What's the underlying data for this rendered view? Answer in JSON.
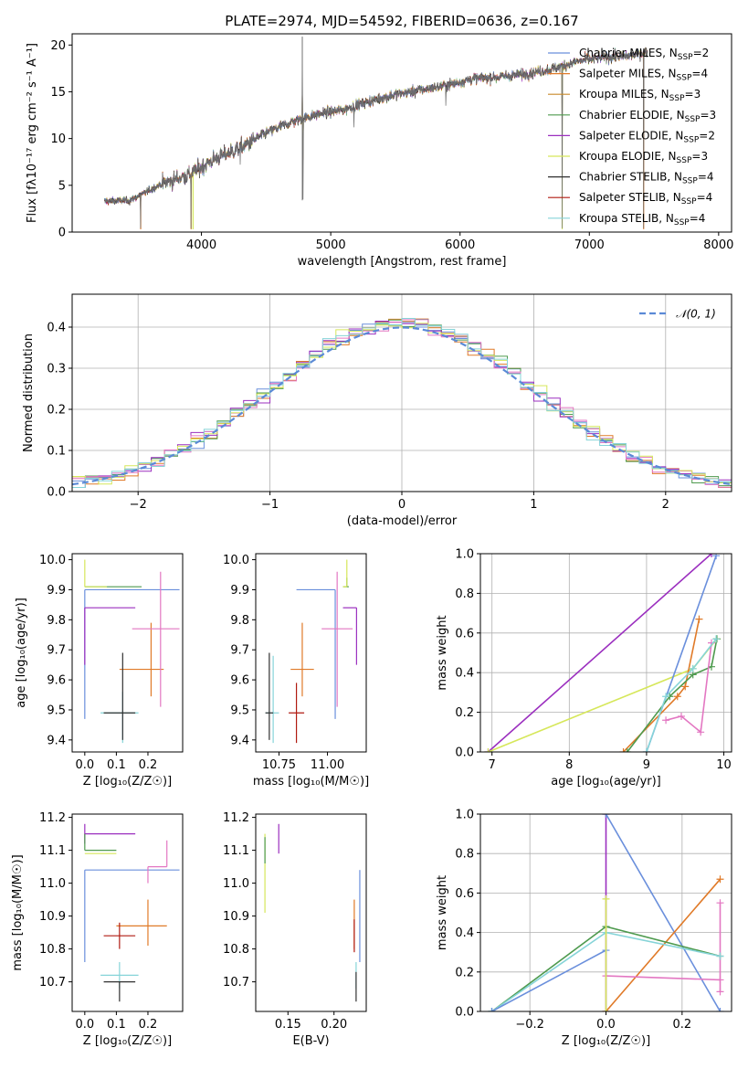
{
  "colors": {
    "chab_miles": "#6a8fdc",
    "salp_miles": "#e07a28",
    "krou_miles": "#c98a2a",
    "chab_elodie": "#4e9a4e",
    "salp_elodie": "#9b2fbf",
    "krou_elodie": "#d6e75a",
    "chab_stelib": "#303030",
    "salp_stelib": "#b01a10",
    "krou_stelib": "#86d4d8",
    "pink": "#e377c2",
    "spectrum_grey": "#6f6f6f",
    "gauss": "#5b8ad6"
  },
  "chart_data": [
    {
      "id": "spectrum",
      "type": "line",
      "title": "PLATE=2974, MJD=54592, FIBERID=0636, z=0.167",
      "xlabel": "wavelength [Angstrom, rest frame]",
      "ylabel": "Flux [fλ10⁻¹⁷ erg cm⁻² s⁻¹ A⁻¹]",
      "xlim": [
        3000,
        8100
      ],
      "ylim": [
        0,
        21.2
      ],
      "xticks": [
        4000,
        5000,
        6000,
        7000,
        8000
      ],
      "yticks": [
        0,
        5,
        10,
        15,
        20
      ],
      "x_range": [
        3250,
        7450
      ],
      "trend_knots": [
        [
          3250,
          3.3
        ],
        [
          3450,
          3.4
        ],
        [
          3700,
          5.2
        ],
        [
          3900,
          6.1
        ],
        [
          4100,
          7.8
        ],
        [
          4300,
          9.0
        ],
        [
          4500,
          10.6
        ],
        [
          4700,
          11.8
        ],
        [
          4900,
          12.6
        ],
        [
          5100,
          13.1
        ],
        [
          5300,
          14.0
        ],
        [
          5500,
          14.7
        ],
        [
          5700,
          15.2
        ],
        [
          5900,
          15.7
        ],
        [
          6100,
          16.4
        ],
        [
          6300,
          16.6
        ],
        [
          6500,
          16.9
        ],
        [
          6700,
          17.4
        ],
        [
          6900,
          18.2
        ],
        [
          7100,
          18.7
        ],
        [
          7300,
          18.8
        ],
        [
          7450,
          19.3
        ]
      ],
      "features": [
        [
          4780,
          20.9
        ],
        [
          4785,
          3.5
        ],
        [
          5890,
          13.5
        ],
        [
          3530,
          0.4
        ],
        [
          3920,
          0.4
        ],
        [
          6790,
          0.4
        ],
        [
          7420,
          0.4
        ],
        [
          5180,
          11.2
        ],
        [
          4300,
          7.2
        ]
      ],
      "legend_position": "upper right",
      "legend": [
        {
          "label": "Chabrier MILES, N",
          "sub": "SSP",
          "suffix": "=2",
          "color_key": "chab_miles"
        },
        {
          "label": "Salpeter MILES, N",
          "sub": "SSP",
          "suffix": "=4",
          "color_key": "salp_miles"
        },
        {
          "label": "Kroupa MILES, N",
          "sub": "SSP",
          "suffix": "=3",
          "color_key": "krou_miles"
        },
        {
          "label": "Chabrier ELODIE, N",
          "sub": "SSP",
          "suffix": "=3",
          "color_key": "chab_elodie"
        },
        {
          "label": "Salpeter ELODIE, N",
          "sub": "SSP",
          "suffix": "=2",
          "color_key": "salp_elodie"
        },
        {
          "label": "Kroupa ELODIE, N",
          "sub": "SSP",
          "suffix": "=3",
          "color_key": "krou_elodie"
        },
        {
          "label": "Chabrier STELIB, N",
          "sub": "SSP",
          "suffix": "=4",
          "color_key": "chab_stelib"
        },
        {
          "label": "Salpeter STELIB, N",
          "sub": "SSP",
          "suffix": "=4",
          "color_key": "salp_stelib"
        },
        {
          "label": "Kroupa STELIB, N",
          "sub": "SSP",
          "suffix": "=4",
          "color_key": "krou_stelib"
        }
      ]
    },
    {
      "id": "residuals",
      "type": "histogram",
      "xlabel": "(data-model)/error",
      "ylabel": "Normed distribution",
      "xlim": [
        -2.5,
        2.5
      ],
      "ylim": [
        0,
        0.48
      ],
      "xticks": [
        -2,
        -1,
        0,
        1,
        2
      ],
      "yticks": [
        0.0,
        0.1,
        0.2,
        0.3,
        0.4
      ],
      "bin_width": 0.1,
      "grid": true,
      "gauss_label": "𝒩(0, 1)",
      "legend_position": "upper right",
      "series_color_keys": [
        "chab_miles",
        "salp_miles",
        "chab_elodie",
        "salp_elodie",
        "pink",
        "krou_elodie",
        "krou_stelib"
      ]
    },
    {
      "id": "age_vs_Z",
      "type": "errorbar",
      "xlabel": "Z [log₁₀(Z/Z☉)]",
      "ylabel": "age  [log₁₀(age/yr)]",
      "xlim": [
        -0.04,
        0.31
      ],
      "ylim": [
        9.36,
        10.02
      ],
      "xticks": [
        0.0,
        0.1,
        0.2
      ],
      "yticks": [
        9.4,
        9.5,
        9.6,
        9.7,
        9.8,
        9.9,
        10.0
      ],
      "points": [
        {
          "x": 0.0,
          "y": 9.9,
          "xerr": [
            0.0,
            0.3
          ],
          "yerr": [
            0.43,
            0.0
          ],
          "color_key": "chab_miles"
        },
        {
          "x": 0.0,
          "y": 9.91,
          "xerr": [
            0.0,
            0.18
          ],
          "yerr": [
            0.0,
            0.0
          ],
          "color_key": "chab_elodie"
        },
        {
          "x": 0.0,
          "y": 9.91,
          "xerr": [
            0.0,
            0.07
          ],
          "yerr": [
            0.0,
            0.09
          ],
          "color_key": "krou_elodie"
        },
        {
          "x": 0.0,
          "y": 9.84,
          "xerr": [
            0.0,
            0.16
          ],
          "yerr": [
            0.19,
            0.0
          ],
          "color_key": "salp_elodie"
        },
        {
          "x": 0.21,
          "y": 9.635,
          "xerr": [
            0.1,
            0.04
          ],
          "yerr": [
            0.09,
            0.155
          ],
          "color_key": "salp_miles"
        },
        {
          "x": 0.24,
          "y": 9.77,
          "xerr": [
            0.09,
            0.06
          ],
          "yerr": [
            0.26,
            0.19
          ],
          "color_key": "pink"
        },
        {
          "x": 0.12,
          "y": 9.49,
          "xerr": [
            0.07,
            0.05
          ],
          "yerr": [
            0.1,
            0.07
          ],
          "color_key": "krou_stelib"
        },
        {
          "x": 0.12,
          "y": 9.49,
          "xerr": [
            0.06,
            0.04
          ],
          "yerr": [
            0.09,
            0.2
          ],
          "color_key": "chab_stelib"
        }
      ]
    },
    {
      "id": "age_vs_mass",
      "type": "errorbar",
      "xlabel": "mass [log₁₀(M/M☉)]",
      "ylabel": "",
      "xlim": [
        10.63,
        11.2
      ],
      "ylim": [
        9.36,
        10.02
      ],
      "xticks": [
        10.75,
        11.0
      ],
      "yticks": [
        9.4,
        9.5,
        9.6,
        9.7,
        9.8,
        9.9,
        10.0
      ],
      "points": [
        {
          "x": 11.04,
          "y": 9.9,
          "xerr": [
            0.2,
            0.0
          ],
          "yerr": [
            0.43,
            0.0
          ],
          "color_key": "chab_miles"
        },
        {
          "x": 11.1,
          "y": 9.91,
          "xerr": [
            0.02,
            0.01
          ],
          "yerr": [
            0.0,
            0.03
          ],
          "color_key": "chab_elodie"
        },
        {
          "x": 11.1,
          "y": 9.91,
          "xerr": [
            0.02,
            0.0
          ],
          "yerr": [
            0.0,
            0.09
          ],
          "color_key": "krou_elodie"
        },
        {
          "x": 11.15,
          "y": 9.84,
          "xerr": [
            0.07,
            0.0
          ],
          "yerr": [
            0.19,
            0.0
          ],
          "color_key": "salp_elodie"
        },
        {
          "x": 10.87,
          "y": 9.635,
          "xerr": [
            0.06,
            0.06
          ],
          "yerr": [
            0.09,
            0.155
          ],
          "color_key": "salp_miles"
        },
        {
          "x": 11.05,
          "y": 9.77,
          "xerr": [
            0.08,
            0.08
          ],
          "yerr": [
            0.26,
            0.19
          ],
          "color_key": "pink"
        },
        {
          "x": 10.72,
          "y": 9.49,
          "xerr": [
            0.04,
            0.03
          ],
          "yerr": [
            0.1,
            0.19
          ],
          "color_key": "krou_stelib"
        },
        {
          "x": 10.7,
          "y": 9.49,
          "xerr": [
            0.02,
            0.02
          ],
          "yerr": [
            0.09,
            0.2
          ],
          "color_key": "chab_stelib"
        },
        {
          "x": 10.84,
          "y": 9.49,
          "xerr": [
            0.04,
            0.04
          ],
          "yerr": [
            0.1,
            0.1
          ],
          "color_key": "salp_stelib"
        }
      ]
    },
    {
      "id": "weight_vs_age",
      "type": "line",
      "xlabel": "age  [log₁₀(age/yr)]",
      "ylabel": "mass weight",
      "xlim": [
        6.85,
        10.1
      ],
      "ylim": [
        0,
        1
      ],
      "xticks": [
        7,
        8,
        9,
        10
      ],
      "yticks": [
        0.0,
        0.2,
        0.4,
        0.6,
        0.8,
        1.0
      ],
      "grid": true,
      "series": [
        {
          "color_key": "salp_elodie",
          "x": [
            6.95,
            9.84
          ],
          "y": [
            0.0,
            1.0
          ]
        },
        {
          "color_key": "krou_elodie",
          "x": [
            6.95,
            9.6,
            9.91
          ],
          "y": [
            0.0,
            0.42,
            0.57
          ]
        },
        {
          "color_key": "chab_miles",
          "x": [
            9.0,
            9.9
          ],
          "y": [
            0.0,
            0.99
          ]
        },
        {
          "color_key": "salp_miles",
          "x": [
            8.7,
            9.4,
            9.5,
            9.68
          ],
          "y": [
            0.0,
            0.28,
            0.33,
            0.67
          ]
        },
        {
          "color_key": "chab_elodie",
          "x": [
            8.75,
            9.3,
            9.6,
            9.84,
            9.91
          ],
          "y": [
            0.0,
            0.28,
            0.39,
            0.43,
            0.57
          ]
        },
        {
          "color_key": "pink",
          "x": [
            9.25,
            9.45,
            9.7,
            9.84
          ],
          "y": [
            0.16,
            0.18,
            0.1,
            0.55
          ]
        },
        {
          "color_key": "krou_stelib",
          "x": [
            9.0,
            9.25,
            9.6,
            9.9
          ],
          "y": [
            0.0,
            0.28,
            0.42,
            0.57
          ]
        }
      ]
    },
    {
      "id": "mass_vs_Z",
      "type": "errorbar",
      "xlabel": "Z [log₁₀(Z/Z☉)]",
      "ylabel": "mass [log₁₀(M/M☉)]",
      "xlim": [
        -0.04,
        0.31
      ],
      "ylim": [
        10.61,
        11.21
      ],
      "xticks": [
        0.0,
        0.1,
        0.2
      ],
      "yticks": [
        10.7,
        10.8,
        10.9,
        11.0,
        11.1,
        11.2
      ],
      "points": [
        {
          "x": 0.0,
          "y": 11.15,
          "xerr": [
            0.0,
            0.16
          ],
          "yerr": [
            0.03,
            0.03
          ],
          "color_key": "salp_elodie"
        },
        {
          "x": 0.0,
          "y": 11.1,
          "xerr": [
            0.0,
            0.1
          ],
          "yerr": [
            0.0,
            0.05
          ],
          "color_key": "chab_elodie"
        },
        {
          "x": 0.0,
          "y": 11.09,
          "xerr": [
            0.0,
            0.1
          ],
          "yerr": [
            0.0,
            0.0
          ],
          "color_key": "krou_elodie"
        },
        {
          "x": 0.0,
          "y": 11.04,
          "xerr": [
            0.0,
            0.3
          ],
          "yerr": [
            0.28,
            0.0
          ],
          "color_key": "chab_miles"
        },
        {
          "x": 0.2,
          "y": 10.87,
          "xerr": [
            0.1,
            0.06
          ],
          "yerr": [
            0.06,
            0.08
          ],
          "color_key": "salp_miles"
        },
        {
          "x": 0.2,
          "y": 11.05,
          "xerr": [
            0.0,
            0.06
          ],
          "yerr": [
            0.05,
            0.0
          ],
          "color_key": "pink"
        },
        {
          "x": 0.26,
          "y": 11.05,
          "xerr": [
            0.0,
            0.0
          ],
          "yerr": [
            0.0,
            0.08
          ],
          "color_key": "pink"
        },
        {
          "x": 0.11,
          "y": 10.84,
          "xerr": [
            0.05,
            0.05
          ],
          "yerr": [
            0.04,
            0.04
          ],
          "color_key": "salp_stelib"
        },
        {
          "x": 0.11,
          "y": 10.72,
          "xerr": [
            0.06,
            0.06
          ],
          "yerr": [
            0.04,
            0.04
          ],
          "color_key": "krou_stelib"
        },
        {
          "x": 0.11,
          "y": 10.7,
          "xerr": [
            0.05,
            0.05
          ],
          "yerr": [
            0.06,
            0.0
          ],
          "color_key": "chab_stelib"
        }
      ]
    },
    {
      "id": "mass_vs_ebv",
      "type": "errorbar",
      "xlabel": "E(B-V)",
      "ylabel": "",
      "xlim": [
        0.115,
        0.235
      ],
      "ylim": [
        10.61,
        11.21
      ],
      "xticks": [
        0.15,
        0.2
      ],
      "yticks": [
        10.7,
        10.8,
        10.9,
        11.0,
        11.1,
        11.2
      ],
      "points": [
        {
          "x": 0.125,
          "y": 11.1,
          "xerr": [
            0.0,
            0.0
          ],
          "yerr": [
            0.19,
            0.05
          ],
          "color_key": "krou_elodie"
        },
        {
          "x": 0.125,
          "y": 11.1,
          "xerr": [
            0.0,
            0.0
          ],
          "yerr": [
            0.04,
            0.04
          ],
          "color_key": "chab_elodie"
        },
        {
          "x": 0.14,
          "y": 11.15,
          "xerr": [
            0.0,
            0.0
          ],
          "yerr": [
            0.06,
            0.03
          ],
          "color_key": "salp_elodie"
        },
        {
          "x": 0.222,
          "y": 10.87,
          "xerr": [
            0.0,
            0.0
          ],
          "yerr": [
            0.07,
            0.08
          ],
          "color_key": "salp_miles"
        },
        {
          "x": 0.228,
          "y": 10.9,
          "xerr": [
            0.0,
            0.0
          ],
          "yerr": [
            0.14,
            0.14
          ],
          "color_key": "chab_miles"
        },
        {
          "x": 0.224,
          "y": 10.72,
          "xerr": [
            0.0,
            0.0
          ],
          "yerr": [
            0.04,
            0.04
          ],
          "color_key": "krou_stelib"
        },
        {
          "x": 0.224,
          "y": 10.7,
          "xerr": [
            0.0,
            0.0
          ],
          "yerr": [
            0.06,
            0.03
          ],
          "color_key": "chab_stelib"
        },
        {
          "x": 0.222,
          "y": 10.84,
          "xerr": [
            0.0,
            0.0
          ],
          "yerr": [
            0.05,
            0.05
          ],
          "color_key": "salp_stelib"
        }
      ]
    },
    {
      "id": "weight_vs_Z",
      "type": "line",
      "xlabel": "Z [log₁₀(Z/Z☉)]",
      "ylabel": "mass weight",
      "xlim": [
        -0.33,
        0.33
      ],
      "ylim": [
        0,
        1
      ],
      "xticks": [
        -0.2,
        0.0,
        0.2
      ],
      "yticks": [
        0.0,
        0.2,
        0.4,
        0.6,
        0.8,
        1.0
      ],
      "grid": true,
      "series": [
        {
          "color_key": "salp_elodie",
          "x": [
            0.0,
            0.0
          ],
          "y": [
            0.0,
            1.0
          ]
        },
        {
          "color_key": "chab_miles",
          "x": [
            0.0,
            0.3
          ],
          "y": [
            1.0,
            0.0
          ]
        },
        {
          "color_key": "salp_miles",
          "x": [
            0.0,
            0.3
          ],
          "y": [
            0.0,
            0.67
          ]
        },
        {
          "color_key": "pink",
          "x": [
            0.0,
            0.3
          ],
          "y": [
            0.18,
            0.16
          ]
        },
        {
          "color_key": "pink",
          "x": [
            0.3,
            0.3
          ],
          "y": [
            0.1,
            0.55
          ]
        },
        {
          "color_key": "chab_elodie",
          "x": [
            -0.3,
            0.0,
            0.3
          ],
          "y": [
            0.0,
            0.43,
            0.28
          ]
        },
        {
          "color_key": "krou_stelib",
          "x": [
            -0.3,
            0.0,
            0.3
          ],
          "y": [
            0.0,
            0.4,
            0.28
          ]
        },
        {
          "color_key": "chab_miles",
          "x": [
            -0.3,
            0.0
          ],
          "y": [
            0.0,
            0.31
          ]
        },
        {
          "color_key": "krou_elodie",
          "x": [
            0.0,
            0.0
          ],
          "y": [
            0.0,
            0.57
          ]
        }
      ]
    }
  ]
}
